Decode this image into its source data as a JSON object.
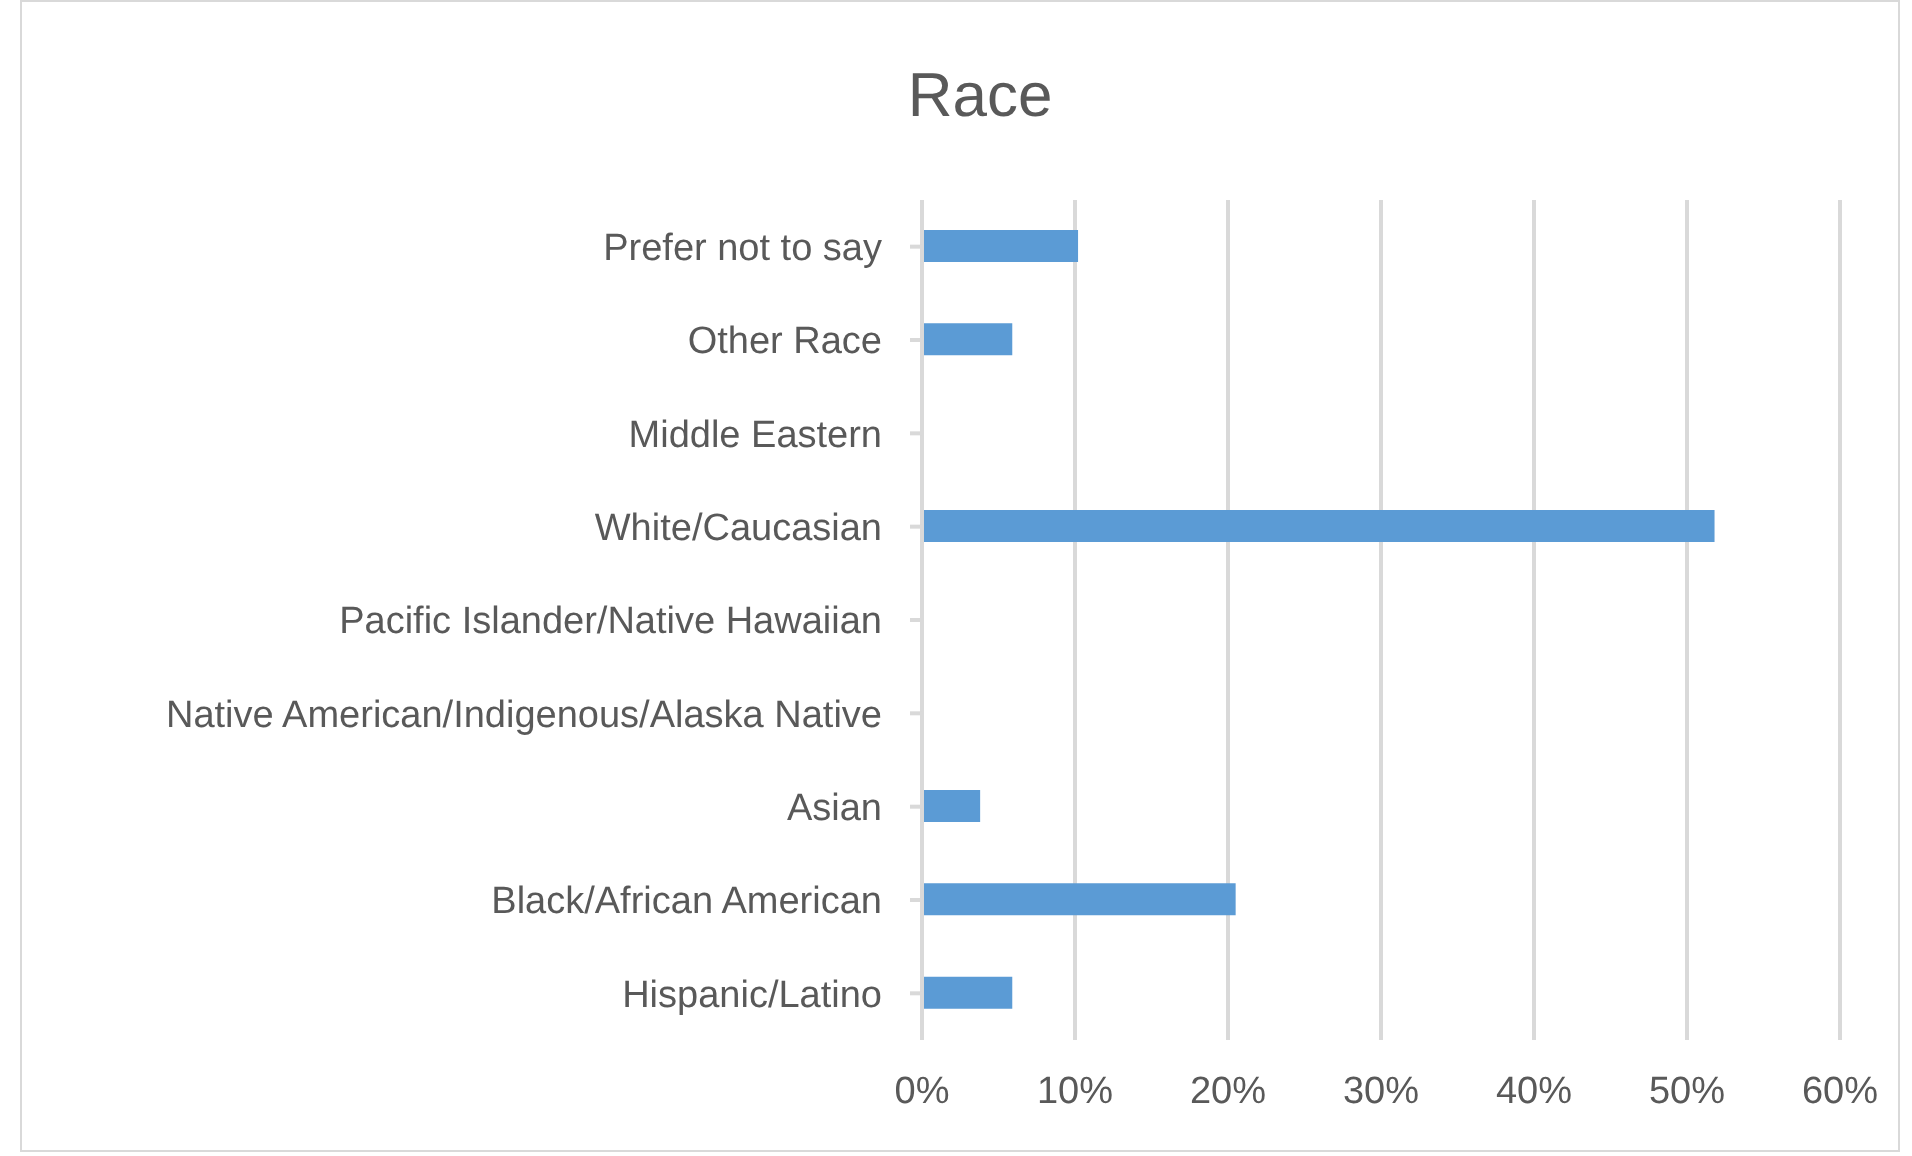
{
  "chart_data": {
    "type": "bar",
    "title": "Race",
    "orientation": "horizontal",
    "categories": [
      "Prefer not to say",
      "Other Race",
      "Middle Eastern",
      "White/Caucasian",
      "Pacific Islander/Native Hawaiian",
      "Native American/Indigenous/Alaska Native",
      "Asian",
      "Black/African American",
      "Hispanic/Latino"
    ],
    "values": [
      10.2,
      5.9,
      0,
      51.8,
      0,
      0,
      3.8,
      20.5,
      5.9
    ],
    "color": "#5b9bd5",
    "xlim": [
      0,
      60
    ],
    "xticks": [
      {
        "value": 0,
        "label": "0%"
      },
      {
        "value": 10,
        "label": "10%"
      },
      {
        "value": 20,
        "label": "20%"
      },
      {
        "value": 30,
        "label": "30%"
      },
      {
        "value": 40,
        "label": "40%"
      },
      {
        "value": 50,
        "label": "50%"
      },
      {
        "value": 60,
        "label": "60%"
      }
    ],
    "grid": "x",
    "legend": false
  }
}
